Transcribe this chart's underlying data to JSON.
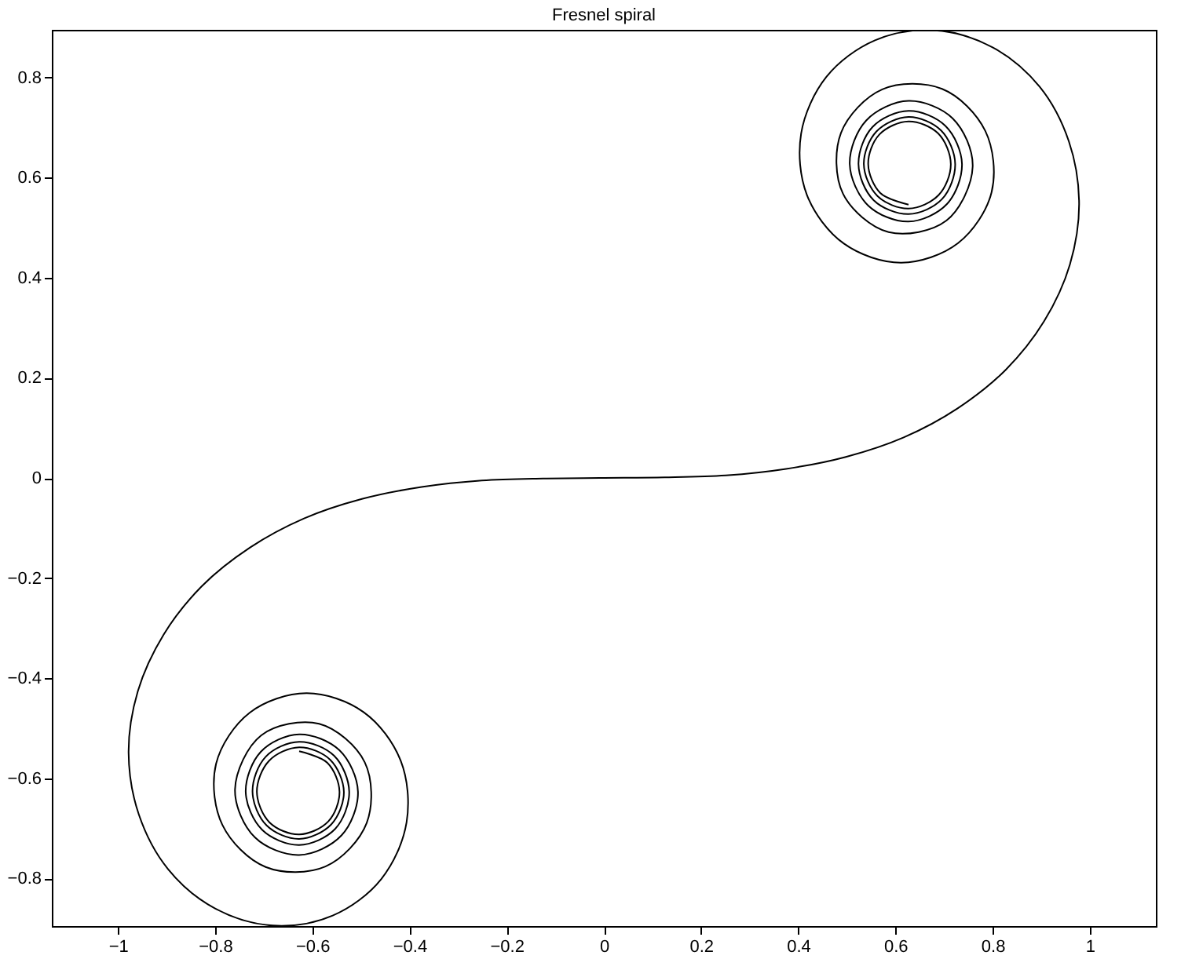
{
  "chart_data": {
    "type": "line",
    "title": "Fresnel spiral",
    "xlim": [
      -1.136,
      1.136
    ],
    "ylim": [
      -0.895,
      0.895
    ],
    "xticks": [
      -1,
      -0.8,
      -0.6,
      -0.4,
      -0.2,
      0,
      0.2,
      0.4,
      0.6,
      0.8,
      1
    ],
    "yticks": [
      -0.8,
      -0.6,
      -0.4,
      -0.2,
      0,
      0.2,
      0.4,
      0.6,
      0.8
    ],
    "grid": false,
    "legend": false,
    "marker": "none",
    "line_style": "solid",
    "series": [
      {
        "color": "#000000",
        "x": [
          -0.627,
          -0.569,
          -0.544,
          -0.567,
          -0.627,
          -0.688,
          -0.714,
          -0.689,
          -0.627,
          -0.563,
          -0.535,
          -0.561,
          -0.627,
          -0.694,
          -0.723,
          -0.696,
          -0.627,
          -0.555,
          -0.524,
          -0.553,
          -0.627,
          -0.703,
          -0.737,
          -0.706,
          -0.627,
          -0.544,
          -0.506,
          -0.54,
          -0.627,
          -0.718,
          -0.759,
          -0.705,
          -0.586,
          -0.492,
          -0.488,
          -0.573,
          -0.696,
          -0.785,
          -0.798,
          -0.729,
          -0.612,
          -0.494,
          -0.418,
          -0.406,
          -0.458,
          -0.558,
          -0.681,
          -0.8,
          -0.897,
          -0.957,
          -0.978,
          -0.959,
          -0.906,
          -0.827,
          -0.728,
          -0.617,
          -0.498,
          -0.375,
          -0.251,
          -0.125,
          0,
          0.125,
          0.251,
          0.375,
          0.498,
          0.617,
          0.728,
          0.827,
          0.906,
          0.959,
          0.978,
          0.957,
          0.897,
          0.8,
          0.681,
          0.558,
          0.458,
          0.406,
          0.418,
          0.494,
          0.612,
          0.729,
          0.798,
          0.785,
          0.696,
          0.573,
          0.488,
          0.492,
          0.586,
          0.705,
          0.759,
          0.718,
          0.627,
          0.54,
          0.506,
          0.544,
          0.627,
          0.706,
          0.737,
          0.703,
          0.627,
          0.553,
          0.524,
          0.555,
          0.627,
          0.696,
          0.723,
          0.694,
          0.627,
          0.561,
          0.535,
          0.563,
          0.627,
          0.689,
          0.714,
          0.688,
          0.627,
          0.567,
          0.544,
          0.569,
          0.627
        ],
        "values": [
          -0.546,
          -0.569,
          -0.627,
          -0.686,
          -0.712,
          -0.688,
          -0.627,
          -0.565,
          -0.538,
          -0.563,
          -0.627,
          -0.692,
          -0.721,
          -0.694,
          -0.627,
          -0.557,
          -0.527,
          -0.555,
          -0.627,
          -0.701,
          -0.733,
          -0.703,
          -0.627,
          -0.547,
          -0.512,
          -0.544,
          -0.627,
          -0.714,
          -0.753,
          -0.718,
          -0.622,
          -0.514,
          -0.491,
          -0.568,
          -0.689,
          -0.776,
          -0.777,
          -0.693,
          -0.571,
          -0.469,
          -0.43,
          -0.468,
          -0.565,
          -0.688,
          -0.801,
          -0.874,
          -0.894,
          -0.86,
          -0.781,
          -0.672,
          -0.549,
          -0.426,
          -0.313,
          -0.216,
          -0.139,
          -0.081,
          -0.042,
          -0.018,
          -0.005,
          -0.001,
          0,
          0.001,
          0.005,
          0.018,
          0.042,
          0.081,
          0.139,
          0.216,
          0.313,
          0.426,
          0.549,
          0.672,
          0.781,
          0.86,
          0.894,
          0.874,
          0.801,
          0.688,
          0.565,
          0.468,
          0.43,
          0.469,
          0.571,
          0.693,
          0.777,
          0.776,
          0.689,
          0.568,
          0.491,
          0.514,
          0.622,
          0.718,
          0.753,
          0.714,
          0.627,
          0.544,
          0.512,
          0.547,
          0.627,
          0.703,
          0.733,
          0.701,
          0.627,
          0.555,
          0.527,
          0.557,
          0.627,
          0.694,
          0.721,
          0.692,
          0.627,
          0.563,
          0.538,
          0.565,
          0.627,
          0.688,
          0.712,
          0.686,
          0.627,
          0.569,
          0.546
        ]
      }
    ]
  }
}
